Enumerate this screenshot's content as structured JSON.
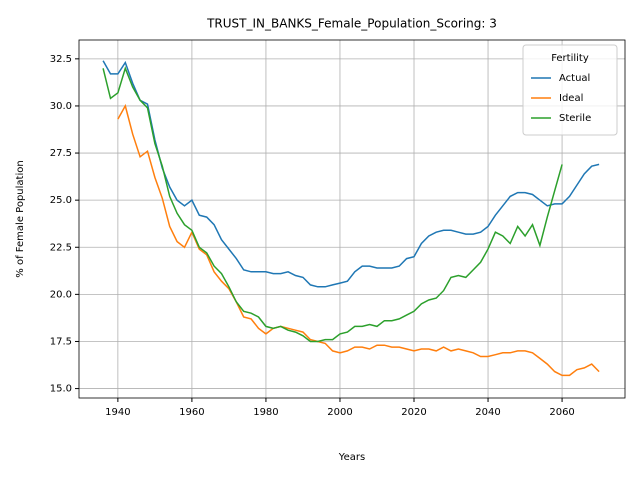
{
  "chart_data": {
    "type": "line",
    "title": "TRUST_IN_BANKS_Female_Population_Scoring: 3",
    "xlabel": "Years",
    "ylabel": "% of Female Population",
    "x": [
      1936,
      1938,
      1940,
      1942,
      1944,
      1946,
      1948,
      1950,
      1952,
      1954,
      1956,
      1958,
      1960,
      1962,
      1964,
      1966,
      1968,
      1970,
      1972,
      1974,
      1976,
      1978,
      1980,
      1982,
      1984,
      1986,
      1988,
      1990,
      1992,
      1994,
      1996,
      1998,
      2000,
      2002,
      2004,
      2006,
      2008,
      2010,
      2012,
      2014,
      2016,
      2018,
      2020,
      2022,
      2024,
      2026,
      2028,
      2030,
      2032,
      2034,
      2036,
      2038,
      2040,
      2042,
      2044,
      2046,
      2048,
      2050,
      2052,
      2054,
      2056,
      2058,
      2060,
      2062,
      2064,
      2066,
      2068,
      2070
    ],
    "series": [
      {
        "name": "Actual",
        "color": "#1f77b4",
        "values": [
          32.4,
          31.7,
          31.7,
          32.3,
          31.2,
          30.3,
          30.1,
          28.2,
          26.7,
          25.7,
          25.0,
          24.7,
          25.0,
          24.2,
          24.1,
          23.7,
          22.9,
          22.4,
          21.9,
          21.3,
          21.2,
          21.2,
          21.2,
          21.1,
          21.1,
          21.2,
          21.0,
          20.9,
          20.5,
          20.4,
          20.4,
          20.5,
          20.6,
          20.7,
          21.2,
          21.5,
          21.5,
          21.4,
          21.4,
          21.4,
          21.5,
          21.9,
          22.0,
          22.7,
          23.1,
          23.3,
          23.4,
          23.4,
          23.3,
          23.2,
          23.2,
          23.3,
          23.6,
          24.2,
          24.7,
          25.2,
          25.4,
          25.4,
          25.3,
          25.0,
          24.7,
          24.8,
          24.8,
          25.2,
          25.8,
          26.4,
          26.8,
          26.9
        ]
      },
      {
        "name": "Ideal",
        "color": "#ff7f0e",
        "values": [
          null,
          null,
          29.3,
          30.0,
          28.5,
          27.3,
          27.6,
          26.2,
          25.1,
          23.6,
          22.8,
          22.5,
          23.3,
          22.4,
          22.1,
          21.2,
          20.7,
          20.3,
          19.6,
          18.8,
          18.7,
          18.2,
          17.9,
          18.2,
          18.3,
          18.2,
          18.1,
          18.0,
          17.6,
          17.5,
          17.4,
          17.0,
          16.9,
          17.0,
          17.2,
          17.2,
          17.1,
          17.3,
          17.3,
          17.2,
          17.2,
          17.1,
          17.0,
          17.1,
          17.1,
          17.0,
          17.2,
          17.0,
          17.1,
          17.0,
          16.9,
          16.7,
          16.7,
          16.8,
          16.9,
          16.9,
          17.0,
          17.0,
          16.9,
          16.6,
          16.3,
          15.9,
          15.7,
          15.7,
          16.0,
          16.1,
          16.3,
          15.9
        ]
      },
      {
        "name": "Sterile",
        "color": "#2ca02c",
        "values": [
          32.0,
          30.4,
          30.7,
          32.0,
          31.0,
          30.3,
          29.9,
          28.0,
          26.8,
          25.2,
          24.3,
          23.7,
          23.4,
          22.5,
          22.2,
          21.5,
          21.1,
          20.4,
          19.6,
          19.1,
          19.0,
          18.8,
          18.3,
          18.2,
          18.3,
          18.1,
          18.0,
          17.8,
          17.5,
          17.5,
          17.6,
          17.6,
          17.9,
          18.0,
          18.3,
          18.3,
          18.4,
          18.3,
          18.6,
          18.6,
          18.7,
          18.9,
          19.1,
          19.5,
          19.7,
          19.8,
          20.2,
          20.9,
          21.0,
          20.9,
          21.3,
          21.7,
          22.4,
          23.3,
          23.1,
          22.7,
          23.6,
          23.1,
          23.7,
          22.6,
          24.1,
          25.5,
          26.9,
          null,
          null,
          null,
          null,
          null
        ]
      }
    ],
    "xlim": [
      1929.5,
      2077
    ],
    "ylim": [
      14.5,
      33.5
    ],
    "xticks": [
      1940,
      1960,
      1980,
      2000,
      2020,
      2040,
      2060
    ],
    "yticks": [
      {
        "value": 15,
        "label": "15.0"
      },
      {
        "value": 17.5,
        "label": "17.5"
      },
      {
        "value": 20,
        "label": "20.0"
      },
      {
        "value": 22.5,
        "label": "22.5"
      },
      {
        "value": 25,
        "label": "25.0"
      },
      {
        "value": 27.5,
        "label": "27.5"
      },
      {
        "value": 30,
        "label": "30.0"
      },
      {
        "value": 32.5,
        "label": "32.5"
      }
    ],
    "grid": true,
    "legend_title": "Fertility",
    "legend": "upper right"
  }
}
